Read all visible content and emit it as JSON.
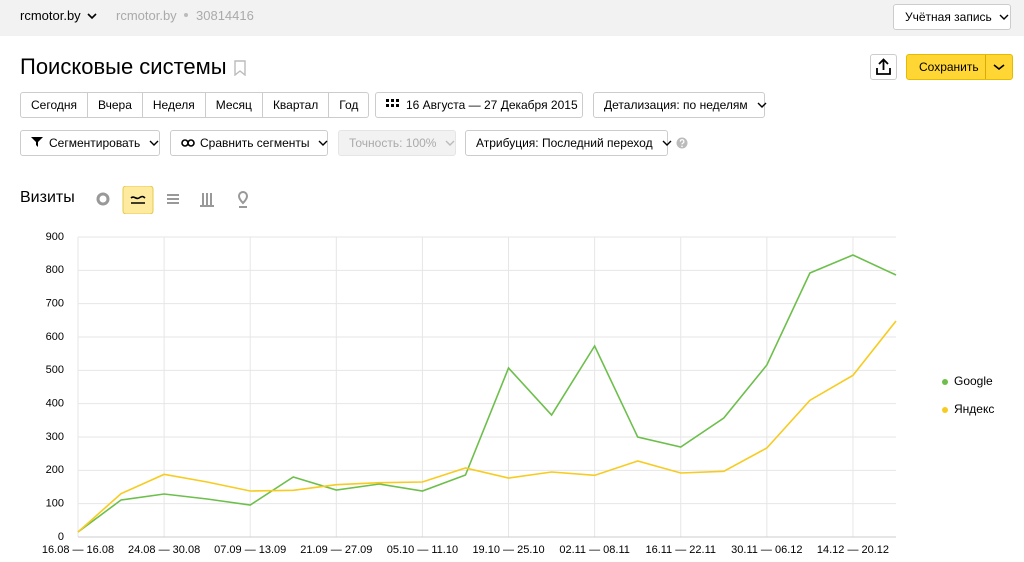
{
  "header": {
    "site": "rcmotor.by",
    "site_secondary": "rcmotor.by",
    "counter_id": "30814416",
    "account": "Учётная запись"
  },
  "page": {
    "title": "Поисковые системы",
    "save": "Сохранить"
  },
  "toolbar": {
    "periods": [
      "Сегодня",
      "Вчера",
      "Неделя",
      "Месяц",
      "Квартал",
      "Год"
    ],
    "date_range": "16 Августа — 27 Декабря 2015",
    "detail": "Детализация: по неделям",
    "segment": "Сегментировать",
    "compare": "Сравнить сегменты",
    "accuracy": "Точность: 100%",
    "attribution": "Атрибуция: Последний переход"
  },
  "chart_data": {
    "type": "line",
    "title": "Визиты",
    "categories": [
      "16.08 — 16.08",
      null,
      "24.08 — 30.08",
      null,
      "07.09 — 13.09",
      null,
      "21.09 — 27.09",
      null,
      "05.10 — 11.10",
      null,
      "19.10 — 25.10",
      null,
      "02.11 — 08.11",
      null,
      "16.11 — 22.11",
      null,
      "30.11 — 06.12",
      null,
      "14.12 — 20.12",
      null
    ],
    "series": [
      {
        "name": "Google",
        "color": "#6dbf4b",
        "values": [
          15,
          111,
          129,
          114,
          96,
          180,
          141,
          159,
          138,
          186,
          507,
          366,
          573,
          300,
          270,
          357,
          516,
          792,
          846,
          786
        ]
      },
      {
        "name": "Яндекс",
        "color": "#f7cb1f",
        "values": [
          15,
          130,
          188,
          165,
          138,
          140,
          157,
          163,
          165,
          207,
          177,
          195,
          185,
          228,
          192,
          197,
          267,
          410,
          485,
          648
        ]
      }
    ],
    "ylim": [
      0,
      900
    ],
    "yticks": [
      0,
      100,
      200,
      300,
      400,
      500,
      600,
      700,
      800,
      900
    ],
    "grid": true,
    "legend": "right"
  }
}
